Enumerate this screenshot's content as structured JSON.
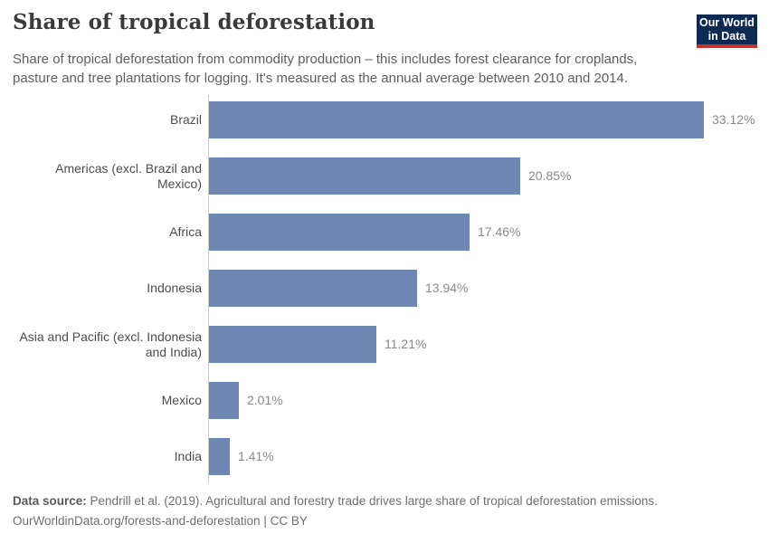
{
  "header": {
    "title": "Share of tropical deforestation",
    "subtitle": "Share of tropical deforestation from commodity production – this includes forest clearance for croplands, pasture and tree plantations for logging. It's measured as the annual average between 2010 and 2014.",
    "logo": {
      "line1": "Our World",
      "line2": "in Data",
      "bg_color": "#0d2b52",
      "accent_color": "#c5312b"
    }
  },
  "chart_data": {
    "type": "bar",
    "orientation": "horizontal",
    "title": "Share of tropical deforestation",
    "categories": [
      "Brazil",
      "Americas (excl. Brazil and Mexico)",
      "Africa",
      "Indonesia",
      "Asia and Pacific (excl. Indonesia and India)",
      "Mexico",
      "India"
    ],
    "values": [
      33.12,
      20.85,
      17.46,
      13.94,
      11.21,
      2.01,
      1.41
    ],
    "value_labels": [
      "33.12%",
      "20.85%",
      "17.46%",
      "13.94%",
      "11.21%",
      "2.01%",
      "1.41%"
    ],
    "unit": "%",
    "xlim": [
      0,
      37.5
    ],
    "grid": false,
    "legend": false,
    "bar_color": "#6e87b2",
    "axis_color": "#cccccc"
  },
  "footer": {
    "source_label": "Data source:",
    "source_text": "Pendrill et al. (2019). Agricultural and forestry trade drives large share of tropical deforestation emissions.",
    "link_line": "OurWorldinData.org/forests-and-deforestation | CC BY"
  }
}
